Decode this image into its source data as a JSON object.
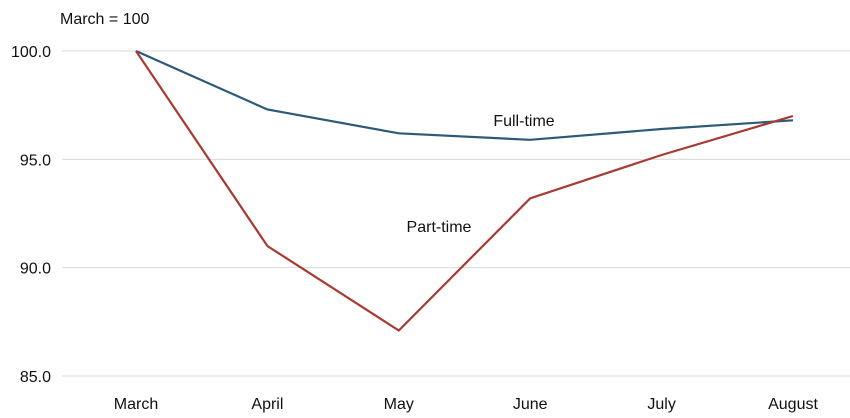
{
  "chart_data": {
    "type": "line",
    "title": "",
    "unit_label": "March = 100",
    "xlabel": "",
    "ylabel": "",
    "categories": [
      "March",
      "April",
      "May",
      "June",
      "July",
      "August"
    ],
    "ylim": [
      85,
      100
    ],
    "yticks": [
      85,
      90,
      95,
      100
    ],
    "ytick_labels": [
      "85.0",
      "90.0",
      "95.0",
      "100.0"
    ],
    "grid": true,
    "legend": "inline-labels",
    "series": [
      {
        "name": "Full-time",
        "color": "#2e5a7a",
        "values": [
          100.0,
          97.3,
          96.2,
          95.9,
          96.4,
          96.8
        ]
      },
      {
        "name": "Part-time",
        "color": "#a83a32",
        "values": [
          100.0,
          91.0,
          87.1,
          93.2,
          95.2,
          97.0
        ]
      }
    ]
  }
}
